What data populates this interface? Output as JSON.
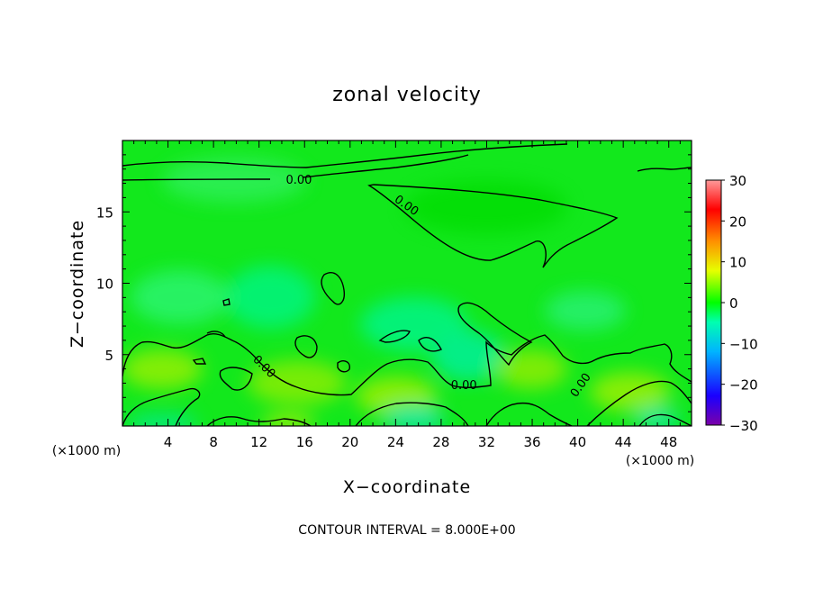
{
  "chart_data": {
    "type": "heatmap",
    "title": "zonal velocity",
    "xlabel": "X−coordinate",
    "ylabel": "Z−coordinate",
    "x_unit": "(×1000 m)",
    "x_unit_right": "(×1000 m)",
    "xlim": [
      0,
      50
    ],
    "ylim": [
      0,
      20
    ],
    "x_ticks": [
      4,
      8,
      12,
      16,
      20,
      24,
      28,
      32,
      36,
      40,
      44,
      48
    ],
    "y_ticks": [
      5,
      10,
      15
    ],
    "colorbar": {
      "range": [
        -30,
        30
      ],
      "ticks": [
        30,
        20,
        10,
        0,
        -10,
        -20,
        -30
      ],
      "tick_labels": [
        "30",
        "20",
        "10",
        "0",
        "−10",
        "−20",
        "−30"
      ],
      "colors": [
        "#7b00a8",
        "#1a00ff",
        "#00b4ff",
        "#00ffb0",
        "#00ff00",
        "#e6ff00",
        "#ff9000",
        "#ff0000",
        "#ff9a9a"
      ]
    },
    "background_color": "#12e81c",
    "contour_level": 0.0,
    "contour_labels": [
      {
        "text": "0.00",
        "x": 15.5,
        "z": 17.3
      },
      {
        "text": "0.00",
        "x": 25.0,
        "z": 15.5
      },
      {
        "text": "0.00",
        "x": 12.5,
        "z": 4.2
      },
      {
        "text": "0.00",
        "x": 30.0,
        "z": 2.9
      },
      {
        "text": "0.00",
        "x": 40.2,
        "z": 2.9
      }
    ],
    "contour_interval": "CONTOUR INTERVAL = 8.000E+00"
  }
}
